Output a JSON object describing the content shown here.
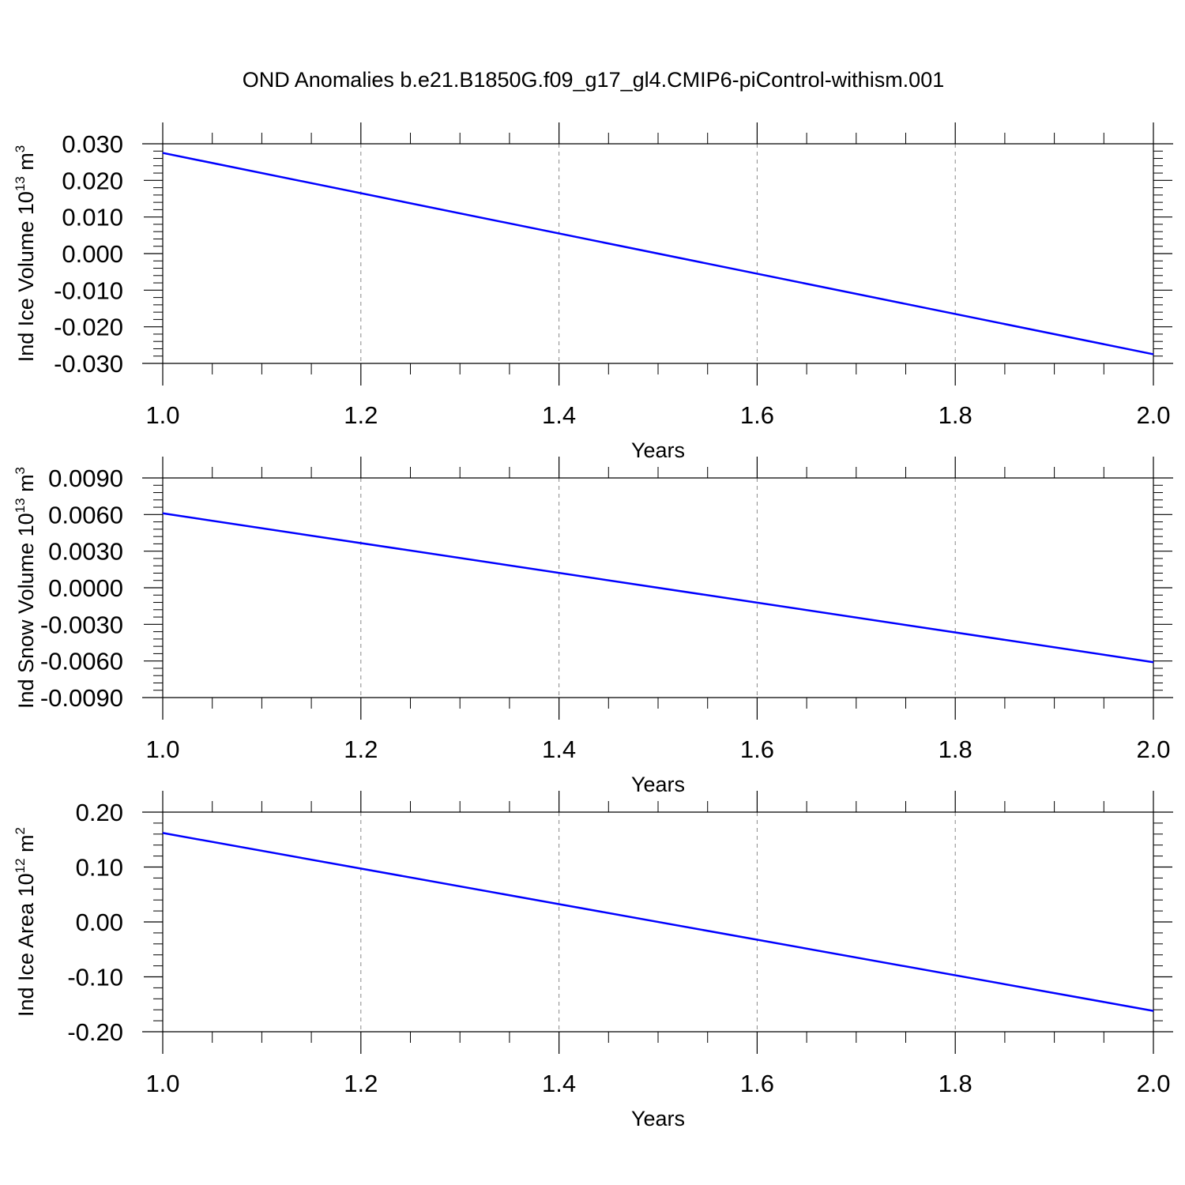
{
  "title": "OND Anomalies b.e21.B1850G.f09_g17_gl4.CMIP6-piControl-withism.001",
  "chart_data": [
    {
      "type": "line",
      "xlabel": "Years",
      "ylabel": {
        "text": "Ind Ice Volume 10",
        "exp": "13",
        "unit": " m",
        "unit_exp": "3"
      },
      "x": [
        1.0,
        2.0
      ],
      "series": [
        {
          "color": "#0000ff",
          "values": [
            0.0275,
            -0.0275
          ]
        }
      ],
      "xlim": [
        1.0,
        2.0
      ],
      "xticks": [
        {
          "value": 1.0,
          "label": "1.0"
        },
        1.2,
        1.4,
        1.6,
        1.8,
        {
          "value": 2.0,
          "label": "2.0"
        }
      ],
      "ylim": [
        -0.03,
        0.03
      ],
      "yticks": [
        {
          "value": -0.03,
          "label": "-0.030"
        },
        {
          "value": -0.02,
          "label": "-0.020"
        },
        {
          "value": -0.01,
          "label": "-0.010"
        },
        {
          "value": 0,
          "label": "0.000"
        },
        {
          "value": 0.01,
          "label": "0.010"
        },
        {
          "value": 0.02,
          "label": "0.020"
        },
        {
          "value": 0.03,
          "label": "0.030"
        }
      ],
      "grid": "x"
    },
    {
      "type": "line",
      "xlabel": "Years",
      "ylabel": {
        "text": "Ind Snow Volume 10",
        "exp": "13",
        "unit": " m",
        "unit_exp": "3"
      },
      "x": [
        1.0,
        2.0
      ],
      "series": [
        {
          "color": "#0000ff",
          "values": [
            0.0061,
            -0.0061
          ]
        }
      ],
      "xlim": [
        1.0,
        2.0
      ],
      "xticks": [
        {
          "value": 1.0,
          "label": "1.0"
        },
        1.2,
        1.4,
        1.6,
        1.8,
        {
          "value": 2.0,
          "label": "2.0"
        }
      ],
      "ylim": [
        -0.009,
        0.009
      ],
      "yticks": [
        {
          "value": -0.009,
          "label": "-0.0090"
        },
        {
          "value": -0.006,
          "label": "-0.0060"
        },
        {
          "value": -0.003,
          "label": "-0.0030"
        },
        {
          "value": 0,
          "label": "0.0000"
        },
        {
          "value": 0.003,
          "label": "0.0030"
        },
        {
          "value": 0.006,
          "label": "0.0060"
        },
        {
          "value": 0.009,
          "label": "0.0090"
        }
      ],
      "grid": "x"
    },
    {
      "type": "line",
      "xlabel": "Years",
      "ylabel": {
        "text": "Ind Ice Area 10",
        "exp": "12",
        "unit": " m",
        "unit_exp": "2"
      },
      "x": [
        1.0,
        2.0
      ],
      "series": [
        {
          "color": "#0000ff",
          "values": [
            0.162,
            -0.162
          ]
        }
      ],
      "xlim": [
        1.0,
        2.0
      ],
      "xticks": [
        {
          "value": 1.0,
          "label": "1.0"
        },
        1.2,
        1.4,
        1.6,
        1.8,
        {
          "value": 2.0,
          "label": "2.0"
        }
      ],
      "ylim": [
        -0.2,
        0.2
      ],
      "yticks": [
        {
          "value": -0.2,
          "label": "-0.20"
        },
        {
          "value": -0.1,
          "label": "-0.10"
        },
        {
          "value": 0,
          "label": "0.00"
        },
        {
          "value": 0.1,
          "label": "0.10"
        },
        {
          "value": 0.2,
          "label": "0.20"
        }
      ],
      "grid": "x"
    }
  ]
}
